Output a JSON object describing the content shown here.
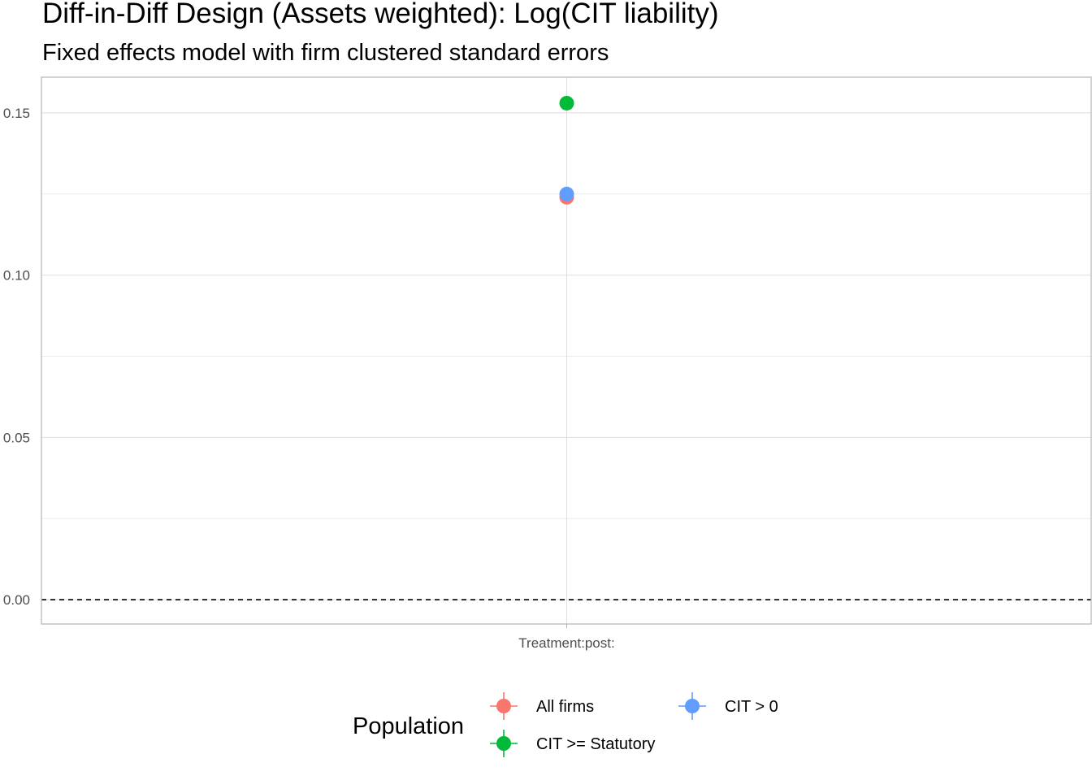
{
  "chart_data": {
    "type": "scatter",
    "title": "Diff-in-Diff Design (Assets weighted): Log(CIT liability)",
    "subtitle": "Fixed effects model with firm clustered standard errors",
    "xlabel": "",
    "ylabel": "",
    "categories": [
      "Treatment:post:"
    ],
    "ylim": [
      -0.0075,
      0.161
    ],
    "y_ticks": [
      "0.00",
      "0.05",
      "0.10",
      "0.15"
    ],
    "y_tick_values": [
      0.0,
      0.05,
      0.1,
      0.15
    ],
    "reference_line": {
      "y": 0,
      "style": "dashed"
    },
    "grid": true,
    "legend": {
      "title": "Population",
      "position": "bottom"
    },
    "series": [
      {
        "name": "All firms",
        "color": "#F8766D",
        "values": [
          0.124
        ]
      },
      {
        "name": "CIT >= Statutory",
        "color": "#00BA38",
        "values": [
          0.153
        ]
      },
      {
        "name": "CIT > 0",
        "color": "#619CFF",
        "values": [
          0.125
        ]
      }
    ]
  }
}
